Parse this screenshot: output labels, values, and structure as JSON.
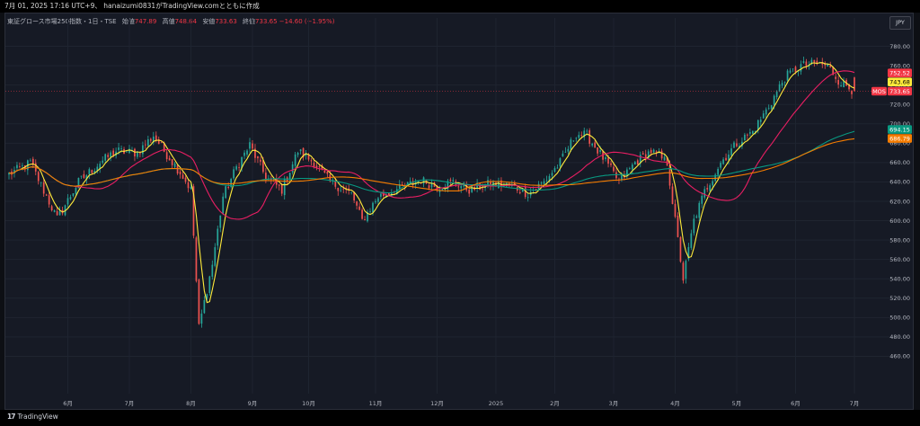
{
  "header": {
    "text": "7月 01, 2025 17:16 UTC+9、 hanaizumi0831がTradingView.comとともに作成"
  },
  "legend": {
    "symbol": "東証グロース市場250指数・1日・TSE",
    "open_label": "始値",
    "open": "747.89",
    "high_label": "高値",
    "high": "748.64",
    "low_label": "安値",
    "low": "733.63",
    "close_label": "終値",
    "close": "733.65",
    "change": "−14.60 (−1.95%)"
  },
  "currency": "JPY",
  "footer": {
    "brand": "TradingView",
    "logo_icon": "tradingview-logo-icon"
  },
  "colors": {
    "up": "#26a69a",
    "down": "#ef5350",
    "ma_yellow": "#ffeb3b",
    "ma_pink": "#e91e63",
    "ma_teal": "#089981",
    "ma_orange": "#f57c00"
  },
  "chart_data": {
    "type": "candlestick",
    "ylim": [
      440,
      800
    ],
    "y_ticks": [
      "460.00",
      "480.00",
      "500.00",
      "520.00",
      "540.00",
      "560.00",
      "580.00",
      "600.00",
      "620.00",
      "640.00",
      "660.00",
      "680.00",
      "700.00",
      "720.00",
      "740.00",
      "760.00",
      "780.00"
    ],
    "x_ticks": [
      "6月",
      "7月",
      "8月",
      "9月",
      "10月",
      "11月",
      "12月",
      "2025",
      "2月",
      "3月",
      "4月",
      "5月",
      "6月",
      "7月"
    ],
    "price_tags": [
      {
        "label": "752.52",
        "value": 752.52,
        "color": "#f23645"
      },
      {
        "label": "743.68",
        "value": 743.68,
        "color": "#ffeb3b"
      },
      {
        "label": "733.65",
        "value": 733.65,
        "color": "#f23645",
        "prefix": "MOS"
      },
      {
        "label": "694.15",
        "value": 694.15,
        "color": "#089981"
      },
      {
        "label": "686.79",
        "value": 686.79,
        "color": "#f57c00"
      }
    ],
    "anchors": [
      {
        "i": 0,
        "c": 648
      },
      {
        "i": 8,
        "c": 660
      },
      {
        "i": 18,
        "c": 602
      },
      {
        "i": 26,
        "c": 640
      },
      {
        "i": 34,
        "c": 660
      },
      {
        "i": 40,
        "c": 672
      },
      {
        "i": 48,
        "c": 670
      },
      {
        "i": 54,
        "c": 688
      },
      {
        "i": 58,
        "c": 672
      },
      {
        "i": 64,
        "c": 650
      },
      {
        "i": 68,
        "c": 632
      },
      {
        "i": 71,
        "c": 490
      },
      {
        "i": 76,
        "c": 555
      },
      {
        "i": 80,
        "c": 625
      },
      {
        "i": 85,
        "c": 655
      },
      {
        "i": 90,
        "c": 678
      },
      {
        "i": 96,
        "c": 645
      },
      {
        "i": 102,
        "c": 632
      },
      {
        "i": 108,
        "c": 672
      },
      {
        "i": 114,
        "c": 660
      },
      {
        "i": 120,
        "c": 640
      },
      {
        "i": 128,
        "c": 628
      },
      {
        "i": 132,
        "c": 600
      },
      {
        "i": 138,
        "c": 625
      },
      {
        "i": 146,
        "c": 633
      },
      {
        "i": 154,
        "c": 642
      },
      {
        "i": 160,
        "c": 635
      },
      {
        "i": 166,
        "c": 640
      },
      {
        "i": 172,
        "c": 632
      },
      {
        "i": 180,
        "c": 638
      },
      {
        "i": 188,
        "c": 636
      },
      {
        "i": 194,
        "c": 628
      },
      {
        "i": 200,
        "c": 640
      },
      {
        "i": 206,
        "c": 660
      },
      {
        "i": 212,
        "c": 690
      },
      {
        "i": 216,
        "c": 688
      },
      {
        "i": 222,
        "c": 665
      },
      {
        "i": 228,
        "c": 640
      },
      {
        "i": 234,
        "c": 660
      },
      {
        "i": 240,
        "c": 672
      },
      {
        "i": 246,
        "c": 660
      },
      {
        "i": 249,
        "c": 600
      },
      {
        "i": 252,
        "c": 540
      },
      {
        "i": 256,
        "c": 600
      },
      {
        "i": 260,
        "c": 630
      },
      {
        "i": 266,
        "c": 660
      },
      {
        "i": 272,
        "c": 680
      },
      {
        "i": 278,
        "c": 692
      },
      {
        "i": 284,
        "c": 718
      },
      {
        "i": 290,
        "c": 748
      },
      {
        "i": 296,
        "c": 760
      },
      {
        "i": 302,
        "c": 762
      },
      {
        "i": 306,
        "c": 760
      },
      {
        "i": 310,
        "c": 745
      },
      {
        "i": 316,
        "c": 733.65
      }
    ],
    "x_tick_index": [
      22,
      45,
      68,
      91,
      112,
      137,
      160,
      182,
      204,
      226,
      249,
      272,
      294,
      316
    ],
    "count": 317,
    "moving_averages": [
      {
        "period": 5,
        "color": "#ffeb3b"
      },
      {
        "period": 25,
        "color": "#e91e63"
      },
      {
        "period": 75,
        "color": "#089981"
      },
      {
        "period": 100,
        "color": "#f57c00"
      }
    ],
    "last_bar": {
      "open": 747.89,
      "high": 748.64,
      "low": 733.63,
      "close": 733.65
    }
  }
}
